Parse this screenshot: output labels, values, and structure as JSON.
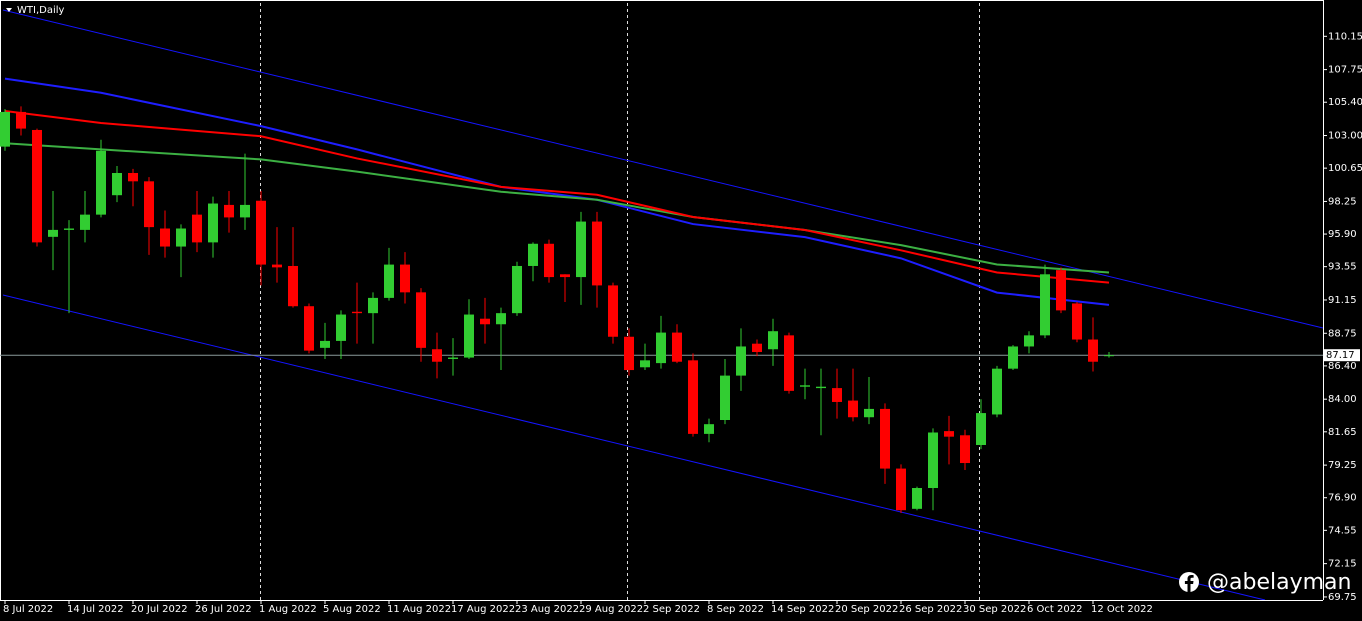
{
  "chart_data": {
    "type": "candlestick",
    "title": "WTI,Daily",
    "watermark": "@abelayman",
    "categories": [
      "8 Jul 2022",
      null,
      null,
      null,
      "14 Jul 2022",
      null,
      null,
      null,
      "20 Jul 2022",
      null,
      null,
      null,
      "26 Jul 2022",
      null,
      null,
      null,
      "1 Aug 2022",
      null,
      null,
      null,
      "5 Aug 2022",
      null,
      null,
      null,
      "11 Aug 2022",
      null,
      null,
      null,
      "17 Aug 2022",
      null,
      null,
      null,
      "23 Aug 2022",
      null,
      null,
      null,
      "29 Aug 2022",
      null,
      null,
      null,
      "2 Sep 2022",
      null,
      null,
      null,
      "8 Sep 2022",
      null,
      null,
      null,
      "14 Sep 2022",
      null,
      null,
      null,
      "20 Sep 2022",
      null,
      null,
      null,
      "26 Sep 2022",
      null,
      null,
      null,
      "30 Sep 2022",
      null,
      null,
      null,
      "6 Oct 2022",
      null,
      null,
      null,
      "12 Oct 2022",
      null
    ],
    "open": [
      102.2,
      104.7,
      103.4,
      95.7,
      96.2,
      96.2,
      97.3,
      98.7,
      100.3,
      99.7,
      96.3,
      95,
      97.3,
      95.3,
      98,
      97.1,
      98.3,
      93.7,
      93.6,
      90.7,
      87.7,
      88.2,
      90.3,
      90.2,
      91.3,
      93.7,
      91.7,
      87.6,
      86.9,
      87,
      89.8,
      89.4,
      90.2,
      93.6,
      95.2,
      93,
      92.8,
      96.8,
      92.2,
      88.5,
      86.3,
      86.6,
      88.8,
      86.8,
      81.5,
      82.5,
      85.7,
      88,
      87.6,
      88.6,
      84.9,
      84.8,
      84.8,
      83.9,
      82.7,
      83.3,
      79,
      76.1,
      77.6,
      81.7,
      81.4,
      80.7,
      82.9,
      86.2,
      87.8,
      88.6,
      93.3,
      90.9,
      88.3,
      87.1
    ],
    "high": [
      104.9,
      105.1,
      103.5,
      99,
      96.9,
      99,
      102.7,
      100.8,
      100.6,
      100,
      97.6,
      96.6,
      99,
      98.6,
      99,
      101.7,
      99,
      96.4,
      96.4,
      90.9,
      89.5,
      90.4,
      92.4,
      91.7,
      94.9,
      94.6,
      92,
      88.8,
      88.4,
      91.2,
      91.3,
      90.6,
      93.9,
      95.3,
      95.5,
      93,
      97.5,
      97.5,
      92.4,
      89.1,
      88,
      90,
      89.4,
      87.3,
      82.6,
      86.9,
      89.1,
      88.3,
      89.8,
      88.8,
      86.2,
      86.2,
      86.2,
      86.2,
      85.6,
      83.7,
      79.3,
      77.7,
      81.9,
      82.8,
      81.8,
      84,
      86.4,
      87.9,
      88.9,
      93.7,
      93.5,
      91,
      89.9,
      87.4
    ],
    "low": [
      101.9,
      103,
      95,
      93.3,
      90.2,
      95.3,
      97.1,
      98.2,
      97.9,
      94.4,
      94.2,
      92.8,
      94.6,
      94.2,
      96,
      96.2,
      92.2,
      92.4,
      90.6,
      87.3,
      86.9,
      86.9,
      88,
      88,
      91.1,
      90.9,
      86.7,
      85.5,
      85.7,
      86.9,
      88,
      86.1,
      90,
      92.5,
      92.4,
      91,
      90.8,
      90.6,
      88,
      85.7,
      86.1,
      86.2,
      86.6,
      81.3,
      80.9,
      82.2,
      84.6,
      87.1,
      86.4,
      84.4,
      84,
      81.4,
      82.6,
      82.4,
      82.2,
      77.9,
      75.8,
      76,
      76,
      79.3,
      78.9,
      80.4,
      82.7,
      86.1,
      87.3,
      88.4,
      90.2,
      88.1,
      86,
      87
    ],
    "close": [
      104.7,
      103.5,
      95.3,
      96.2,
      96.3,
      97.3,
      101.9,
      100.3,
      99.7,
      96.4,
      95,
      96.3,
      95.3,
      98.1,
      97.1,
      98,
      93.7,
      93.5,
      90.7,
      87.5,
      88.2,
      90.1,
      90.2,
      91.3,
      93.7,
      91.7,
      87.7,
      86.7,
      87,
      90.1,
      89.4,
      90.2,
      93.6,
      95.2,
      92.8,
      92.8,
      96.8,
      92.2,
      88.5,
      86.1,
      86.8,
      88.8,
      86.7,
      81.5,
      82.2,
      85.7,
      87.8,
      87.4,
      88.9,
      84.6,
      85,
      84.9,
      83.8,
      82.7,
      83.3,
      79,
      76,
      77.6,
      81.6,
      81.3,
      79.4,
      83,
      86.2,
      87.8,
      88.6,
      93,
      90.4,
      88.3,
      86.7,
      87.17
    ],
    "up_color": "#32cd32",
    "down_color": "#ff0000",
    "last_price": 87.17,
    "overlays": [
      {
        "color": "#1e1eff",
        "x": [
          0,
          6,
          16,
          22,
          31,
          37,
          43,
          50,
          56,
          62,
          69
        ],
        "values": [
          107.1,
          106.08,
          103.68,
          102,
          99.3,
          98.37,
          96.62,
          95.68,
          94.15,
          91.68,
          90.8
        ]
      },
      {
        "color": "#3cb043",
        "x": [
          0,
          6,
          16,
          22,
          31,
          37,
          43,
          50,
          56,
          62,
          69
        ],
        "values": [
          102.44,
          102,
          101.28,
          100.4,
          98.95,
          98.37,
          97.13,
          96.19,
          95.1,
          93.71,
          93.13
        ]
      },
      {
        "color": "#ff0000",
        "x": [
          0,
          6,
          16,
          22,
          31,
          37,
          43,
          50,
          56,
          62,
          69
        ],
        "values": [
          104.77,
          103.9,
          102.95,
          101.35,
          99.3,
          98.73,
          97.13,
          96.19,
          94.73,
          93.13,
          92.4
        ]
      }
    ],
    "ylim": [
      69.53,
      112.55
    ],
    "yticks": [
      110.15,
      107.75,
      {
        "value": 105.4,
        "label": "105.40"
      },
      {
        "value": 103,
        "label": "103.00"
      },
      100.65,
      98.25,
      {
        "value": 95.9,
        "label": "95.90"
      },
      93.55,
      91.15,
      88.75,
      {
        "value": 86.4,
        "label": "86.40"
      },
      {
        "value": 84,
        "label": "84.00"
      },
      81.65,
      79.25,
      {
        "value": 76.9,
        "label": "76.90"
      },
      74.55,
      72.15,
      69.75
    ]
  }
}
